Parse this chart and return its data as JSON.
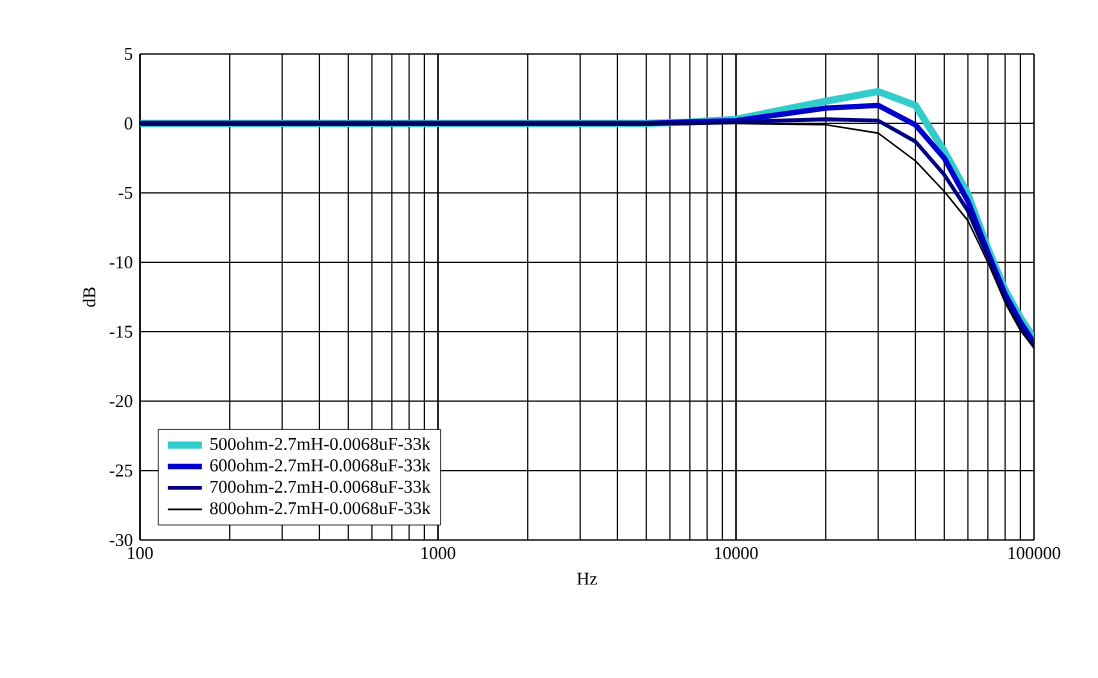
{
  "chart_data": {
    "type": "line",
    "xlabel": "Hz",
    "ylabel": "dB",
    "log": "x",
    "grid": true,
    "legend": "bottom left",
    "marker": "none",
    "line_style": "solid",
    "xlim": [
      100,
      100000
    ],
    "ylim": [
      -30,
      5
    ],
    "xticks": [
      100,
      1000,
      10000,
      100000
    ],
    "yticks": [
      -30,
      -25,
      -20,
      -15,
      -10,
      -5,
      0,
      5
    ],
    "x": [
      100,
      1000,
      5000,
      7000,
      10000,
      20000,
      30000,
      40000,
      50000,
      60000,
      70000,
      80000,
      90000,
      100000
    ],
    "series": [
      {
        "name": "500ohm-2.7mH-0.0068uF-33k",
        "color": "#33cccc",
        "values": [
          0,
          0,
          0,
          0.1,
          0.3,
          1.6,
          2.3,
          1.3,
          -2.0,
          -5.1,
          -9.0,
          -12.0,
          -14.0,
          -15.5
        ]
      },
      {
        "name": "600ohm-2.7mH-0.0068uF-33k",
        "color": "#0000cc",
        "values": [
          0,
          0,
          0,
          0.1,
          0.2,
          1.1,
          1.3,
          -0.1,
          -2.5,
          -5.6,
          -9.3,
          -12.3,
          -14.3,
          -15.8
        ]
      },
      {
        "name": "700ohm-2.7mH-0.0068uF-33k",
        "color": "#000080",
        "values": [
          0,
          0,
          0,
          0,
          0.1,
          0.3,
          0.2,
          -1.3,
          -3.7,
          -6.3,
          -9.6,
          -12.6,
          -14.6,
          -16.0
        ]
      },
      {
        "name": "800ohm-2.7mH-0.0068uF-33k",
        "color": "#000000",
        "values": [
          0,
          0,
          0,
          0,
          0,
          -0.1,
          -0.7,
          -2.7,
          -4.9,
          -7.0,
          -10.0,
          -12.9,
          -14.9,
          -16.2
        ]
      }
    ]
  }
}
